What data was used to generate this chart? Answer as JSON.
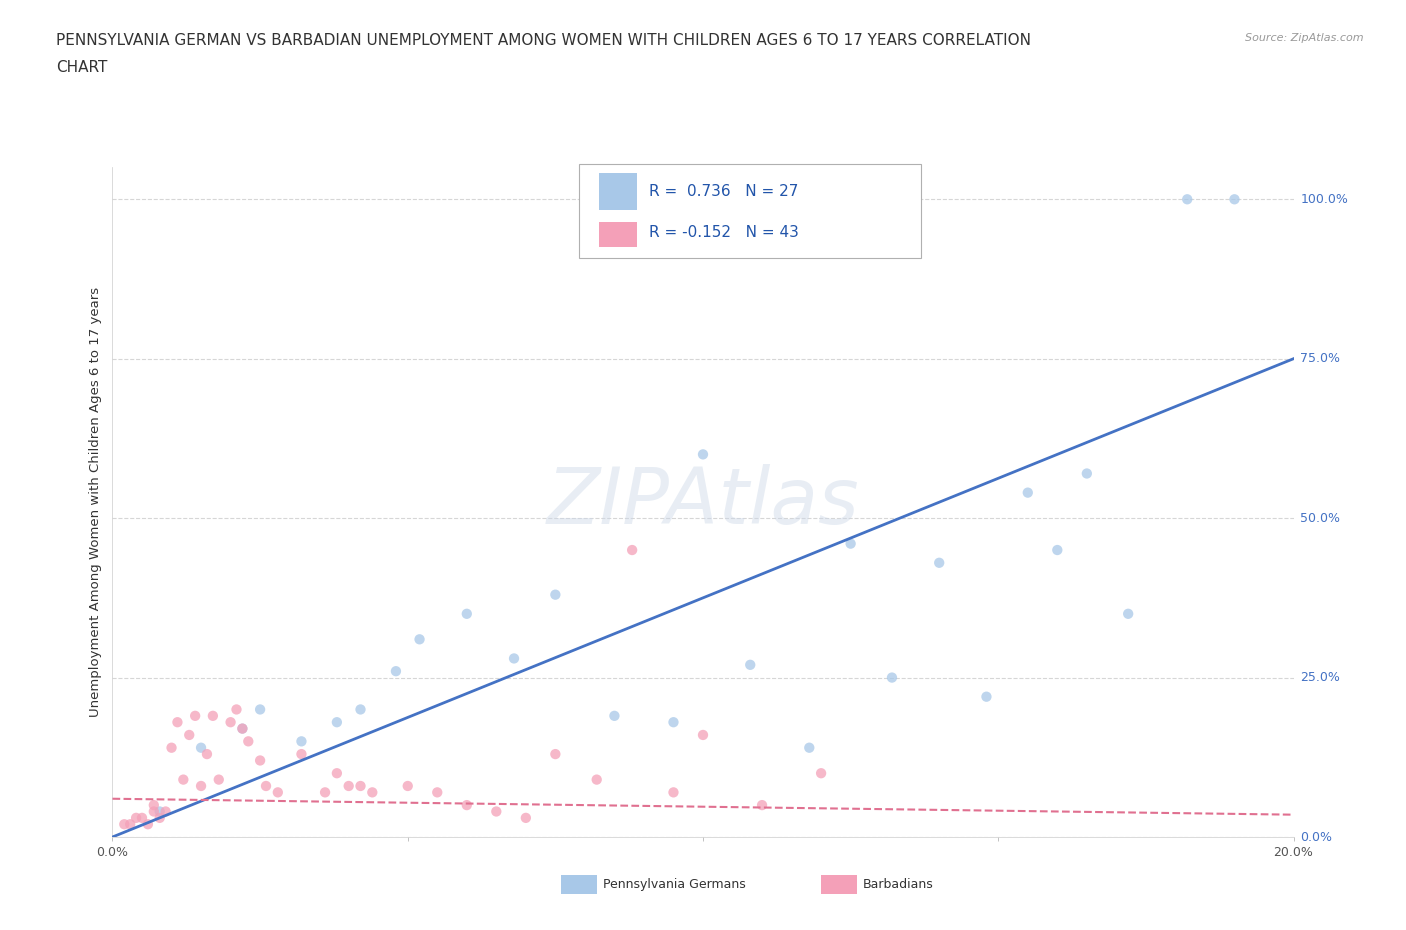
{
  "title_line1": "PENNSYLVANIA GERMAN VS BARBADIAN UNEMPLOYMENT AMONG WOMEN WITH CHILDREN AGES 6 TO 17 YEARS CORRELATION",
  "title_line2": "CHART",
  "source_text": "Source: ZipAtlas.com",
  "ylabel": "Unemployment Among Women with Children Ages 6 to 17 years",
  "watermark": "ZIPAtlas",
  "xlim": [
    0.0,
    0.2
  ],
  "ylim": [
    0.0,
    1.05
  ],
  "xticks": [
    0.0,
    0.05,
    0.1,
    0.15,
    0.2
  ],
  "yticks": [
    0.0,
    0.25,
    0.5,
    0.75,
    1.0
  ],
  "blue_color": "#a8c8e8",
  "blue_line_color": "#4472c4",
  "pink_color": "#f4a0b8",
  "pink_line_color": "#e07090",
  "legend_R1": "0.736",
  "legend_N1": "27",
  "legend_R2": "-0.152",
  "legend_N2": "43",
  "legend_label1": "Pennsylvania Germans",
  "legend_label2": "Barbadians",
  "blue_scatter_x": [
    0.008,
    0.015,
    0.022,
    0.025,
    0.032,
    0.038,
    0.042,
    0.048,
    0.052,
    0.06,
    0.068,
    0.075,
    0.085,
    0.095,
    0.1,
    0.108,
    0.118,
    0.125,
    0.132,
    0.14,
    0.148,
    0.155,
    0.16,
    0.165,
    0.172,
    0.182,
    0.19
  ],
  "blue_scatter_y": [
    0.04,
    0.14,
    0.17,
    0.2,
    0.15,
    0.18,
    0.2,
    0.26,
    0.31,
    0.35,
    0.28,
    0.38,
    0.19,
    0.18,
    0.6,
    0.27,
    0.14,
    0.46,
    0.25,
    0.43,
    0.22,
    0.54,
    0.45,
    0.57,
    0.35,
    1.0,
    1.0
  ],
  "pink_scatter_x": [
    0.002,
    0.003,
    0.004,
    0.005,
    0.006,
    0.007,
    0.007,
    0.008,
    0.009,
    0.01,
    0.011,
    0.012,
    0.013,
    0.014,
    0.015,
    0.016,
    0.017,
    0.018,
    0.02,
    0.021,
    0.022,
    0.023,
    0.025,
    0.026,
    0.028,
    0.032,
    0.036,
    0.038,
    0.04,
    0.042,
    0.044,
    0.05,
    0.055,
    0.06,
    0.065,
    0.07,
    0.075,
    0.082,
    0.088,
    0.095,
    0.1,
    0.11,
    0.12
  ],
  "pink_scatter_y": [
    0.02,
    0.02,
    0.03,
    0.03,
    0.02,
    0.04,
    0.05,
    0.03,
    0.04,
    0.14,
    0.18,
    0.09,
    0.16,
    0.19,
    0.08,
    0.13,
    0.19,
    0.09,
    0.18,
    0.2,
    0.17,
    0.15,
    0.12,
    0.08,
    0.07,
    0.13,
    0.07,
    0.1,
    0.08,
    0.08,
    0.07,
    0.08,
    0.07,
    0.05,
    0.04,
    0.03,
    0.13,
    0.09,
    0.45,
    0.07,
    0.16,
    0.05,
    0.1
  ],
  "blue_line_x0": 0.0,
  "blue_line_y0": 0.0,
  "blue_line_x1": 0.2,
  "blue_line_y1": 0.75,
  "pink_line_x0": 0.0,
  "pink_line_y0": 0.06,
  "pink_line_x1": 0.2,
  "pink_line_y1": 0.035,
  "background_color": "#ffffff",
  "grid_color": "#cccccc",
  "title_fontsize": 11,
  "axis_label_fontsize": 9.5,
  "tick_fontsize": 9,
  "scatter_size": 55,
  "scatter_alpha": 0.75
}
